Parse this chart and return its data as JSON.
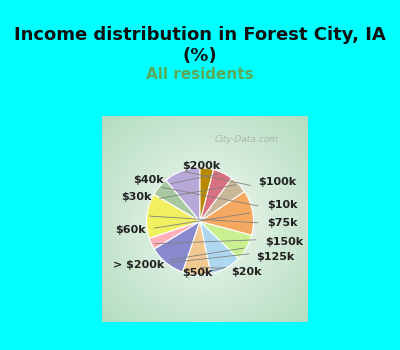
{
  "title": "Income distribution in Forest City, IA\n(%)",
  "subtitle": "All residents",
  "title_fontsize": 13,
  "subtitle_fontsize": 11,
  "title_color": "#111111",
  "subtitle_color": "#5aaa5a",
  "background_cyan": "#00FFFF",
  "labels": [
    "$100k",
    "$10k",
    "$75k",
    "$150k",
    "$125k",
    "$20k",
    "$50k",
    "> $200k",
    "$60k",
    "$30k",
    "$40k",
    "$200k"
  ],
  "sizes": [
    11.0,
    5.5,
    13.5,
    3.5,
    11.0,
    8.5,
    9.5,
    8.0,
    13.5,
    5.5,
    6.0,
    4.0
  ],
  "colors": [
    "#b8a8d8",
    "#a8c8a0",
    "#f0f060",
    "#ffb0b8",
    "#8888cc",
    "#f0c890",
    "#add8f0",
    "#c8f090",
    "#f4a860",
    "#c8b898",
    "#d87080",
    "#b88800"
  ],
  "startangle": 90,
  "label_fontsize": 8,
  "watermark": "City-Data.com",
  "label_positions": {
    "$100k": [
      0.52,
      0.36,
      "left"
    ],
    "$10k": [
      0.6,
      0.14,
      "left"
    ],
    "$75k": [
      0.6,
      -0.04,
      "left"
    ],
    "$150k": [
      0.58,
      -0.22,
      "left"
    ],
    "$125k": [
      0.5,
      -0.37,
      "left"
    ],
    "$20k": [
      0.25,
      -0.51,
      "left"
    ],
    "$50k": [
      -0.08,
      -0.52,
      "center"
    ],
    "> $200k": [
      -0.4,
      -0.44,
      "right"
    ],
    "$60k": [
      -0.58,
      -0.1,
      "right"
    ],
    "$30k": [
      -0.52,
      0.22,
      "right"
    ],
    "$40k": [
      -0.4,
      0.38,
      "right"
    ],
    "$200k": [
      -0.04,
      0.52,
      "center"
    ]
  }
}
